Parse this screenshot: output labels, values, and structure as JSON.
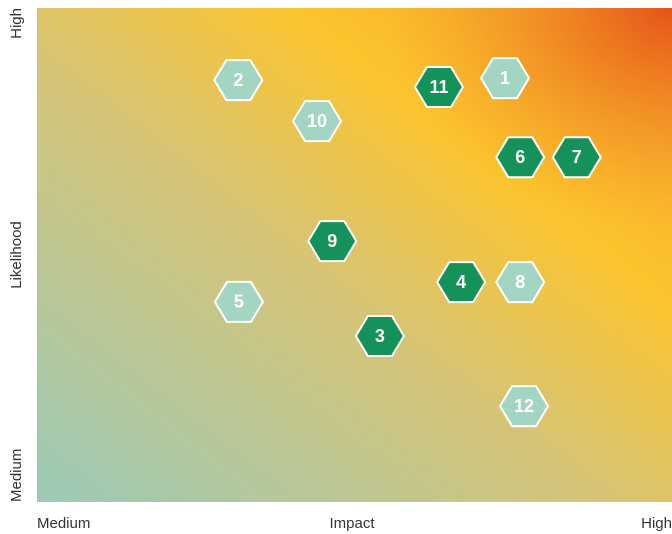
{
  "chart_data": {
    "type": "scatter",
    "x_axis": {
      "label": "Impact",
      "low": "Medium",
      "high": "High"
    },
    "y_axis": {
      "label": "Likelihood",
      "low": "Medium",
      "high": "High"
    },
    "xlim": [
      0,
      100
    ],
    "ylim": [
      0,
      100
    ],
    "points": [
      {
        "label": "1",
        "x": 73.7,
        "y": 85.8,
        "color": "#a3d6c2"
      },
      {
        "label": "2",
        "x": 31.7,
        "y": 85.4,
        "color": "#a3d6c2"
      },
      {
        "label": "3",
        "x": 54.0,
        "y": 33.6,
        "color": "#15915a"
      },
      {
        "label": "4",
        "x": 66.8,
        "y": 44.5,
        "color": "#15915a"
      },
      {
        "label": "5",
        "x": 31.8,
        "y": 40.5,
        "color": "#a3d6c2"
      },
      {
        "label": "6",
        "x": 76.1,
        "y": 69.8,
        "color": "#15915a"
      },
      {
        "label": "7",
        "x": 85.0,
        "y": 69.8,
        "color": "#15915a"
      },
      {
        "label": "8",
        "x": 76.1,
        "y": 44.5,
        "color": "#a3d6c2"
      },
      {
        "label": "9",
        "x": 46.5,
        "y": 52.8,
        "color": "#15915a"
      },
      {
        "label": "10",
        "x": 44.1,
        "y": 77.1,
        "color": "#a3d6c2"
      },
      {
        "label": "11",
        "x": 63.3,
        "y": 84.0,
        "color": "#15915a"
      },
      {
        "label": "12",
        "x": 76.7,
        "y": 19.4,
        "color": "#a3d6c2"
      }
    ]
  }
}
